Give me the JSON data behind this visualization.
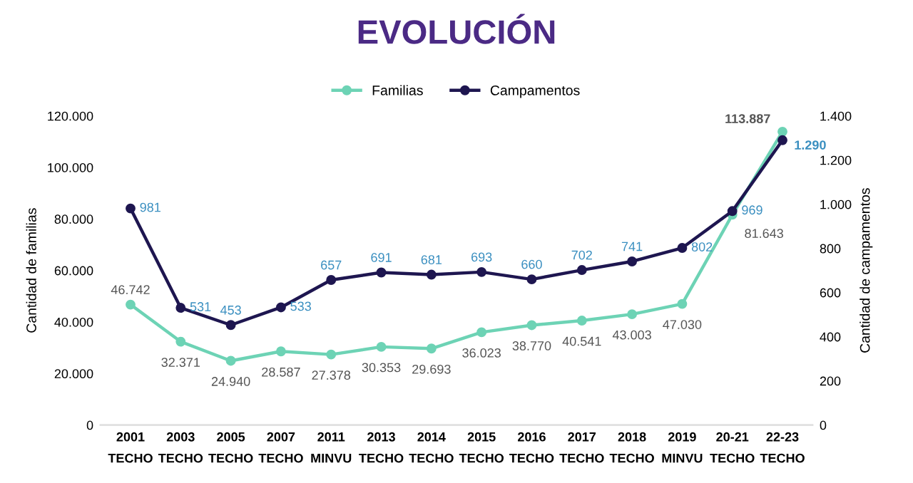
{
  "chart_data": {
    "type": "line",
    "title": "EVOLUCIÓN",
    "ylabel": "Cantidad de familias",
    "y2label": "Cantidad de campamentos",
    "categories": [
      "2001\nTECHO",
      "2003\nTECHO",
      "2005\nTECHO",
      "2007\nTECHO",
      "2011\nMINVU",
      "2013\nTECHO",
      "2014\nTECHO",
      "2015\nTECHO",
      "2016\nTECHO",
      "2017\nTECHO",
      "2018\nTECHO",
      "2019\nMINVU",
      "20-21\nTECHO",
      "22-23\nTECHO"
    ],
    "series": [
      {
        "name": "Familias",
        "color": "#6dd3b5",
        "values": [
          46742,
          32371,
          24940,
          28587,
          27378,
          30353,
          29693,
          36023,
          38770,
          40541,
          43003,
          47030,
          81643,
          113887
        ],
        "value_labels": [
          "46.742",
          "32.371",
          "24.940",
          "28.587",
          "27.378",
          "30.353",
          "29.693",
          "36.023",
          "38.770",
          "40.541",
          "43.003",
          "47.030",
          "81.643",
          "113.887"
        ]
      },
      {
        "name": "Campamentos",
        "color": "#1e1650",
        "axis": "y2",
        "values": [
          981,
          531,
          453,
          533,
          657,
          691,
          681,
          693,
          660,
          702,
          741,
          802,
          969,
          1290
        ],
        "value_labels": [
          "981",
          "531",
          "453",
          "533",
          "657",
          "691",
          "681",
          "693",
          "660",
          "702",
          "741",
          "802",
          "969",
          "1.290"
        ]
      }
    ],
    "ylim": [
      0,
      120000
    ],
    "yticks": [
      {
        "value": 0,
        "label": "0"
      },
      {
        "value": 20000,
        "label": "20.000"
      },
      {
        "value": 40000,
        "label": "40.000"
      },
      {
        "value": 60000,
        "label": "60.000"
      },
      {
        "value": 80000,
        "label": "80.000"
      },
      {
        "value": 100000,
        "label": "100.000"
      },
      {
        "value": 120000,
        "label": "120.000"
      }
    ],
    "y2lim": [
      0,
      1400
    ],
    "y2ticks": [
      {
        "value": 0,
        "label": "0"
      },
      {
        "value": 200,
        "label": "200"
      },
      {
        "value": 400,
        "label": "400"
      },
      {
        "value": 600,
        "label": "600"
      },
      {
        "value": 800,
        "label": "800"
      },
      {
        "value": 1000,
        "label": "1.000"
      },
      {
        "value": 1200,
        "label": "1.200"
      },
      {
        "value": 1400,
        "label": "1.400"
      }
    ],
    "marker": "circle",
    "legend": "top",
    "grid": false
  }
}
